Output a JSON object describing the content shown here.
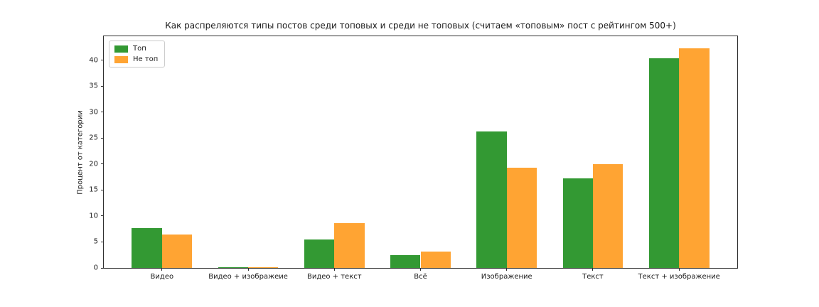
{
  "figure": {
    "background": "#ffffff",
    "text_color": "#1a1a1a",
    "spine_color": "#2e2e2e"
  },
  "chart_data": {
    "type": "bar",
    "title": "Как распреляются типы постов среди топовых и среди не топовых (считаем «топовым» пост с рейтингом 500+)",
    "xlabel": "",
    "ylabel": "Процент от категории",
    "categories": [
      "Видео",
      "Видео + изображеие",
      "Видео + текст",
      "Всё",
      "Изображение",
      "Текст",
      "Текст + изображение"
    ],
    "series": [
      {
        "name": "Топ",
        "color": "#339933",
        "values": [
          7.6,
          0.2,
          5.5,
          2.5,
          26.3,
          17.3,
          40.3
        ]
      },
      {
        "name": "Не топ",
        "color": "#ffa433",
        "values": [
          6.4,
          0.1,
          8.6,
          3.1,
          19.3,
          20.0,
          42.3
        ]
      }
    ],
    "ylim": [
      0,
      44.6
    ],
    "yticks": [
      0,
      5,
      10,
      15,
      20,
      25,
      30,
      35,
      40
    ],
    "bar_width": 0.35,
    "grid": false,
    "legend_position": "upper left"
  }
}
